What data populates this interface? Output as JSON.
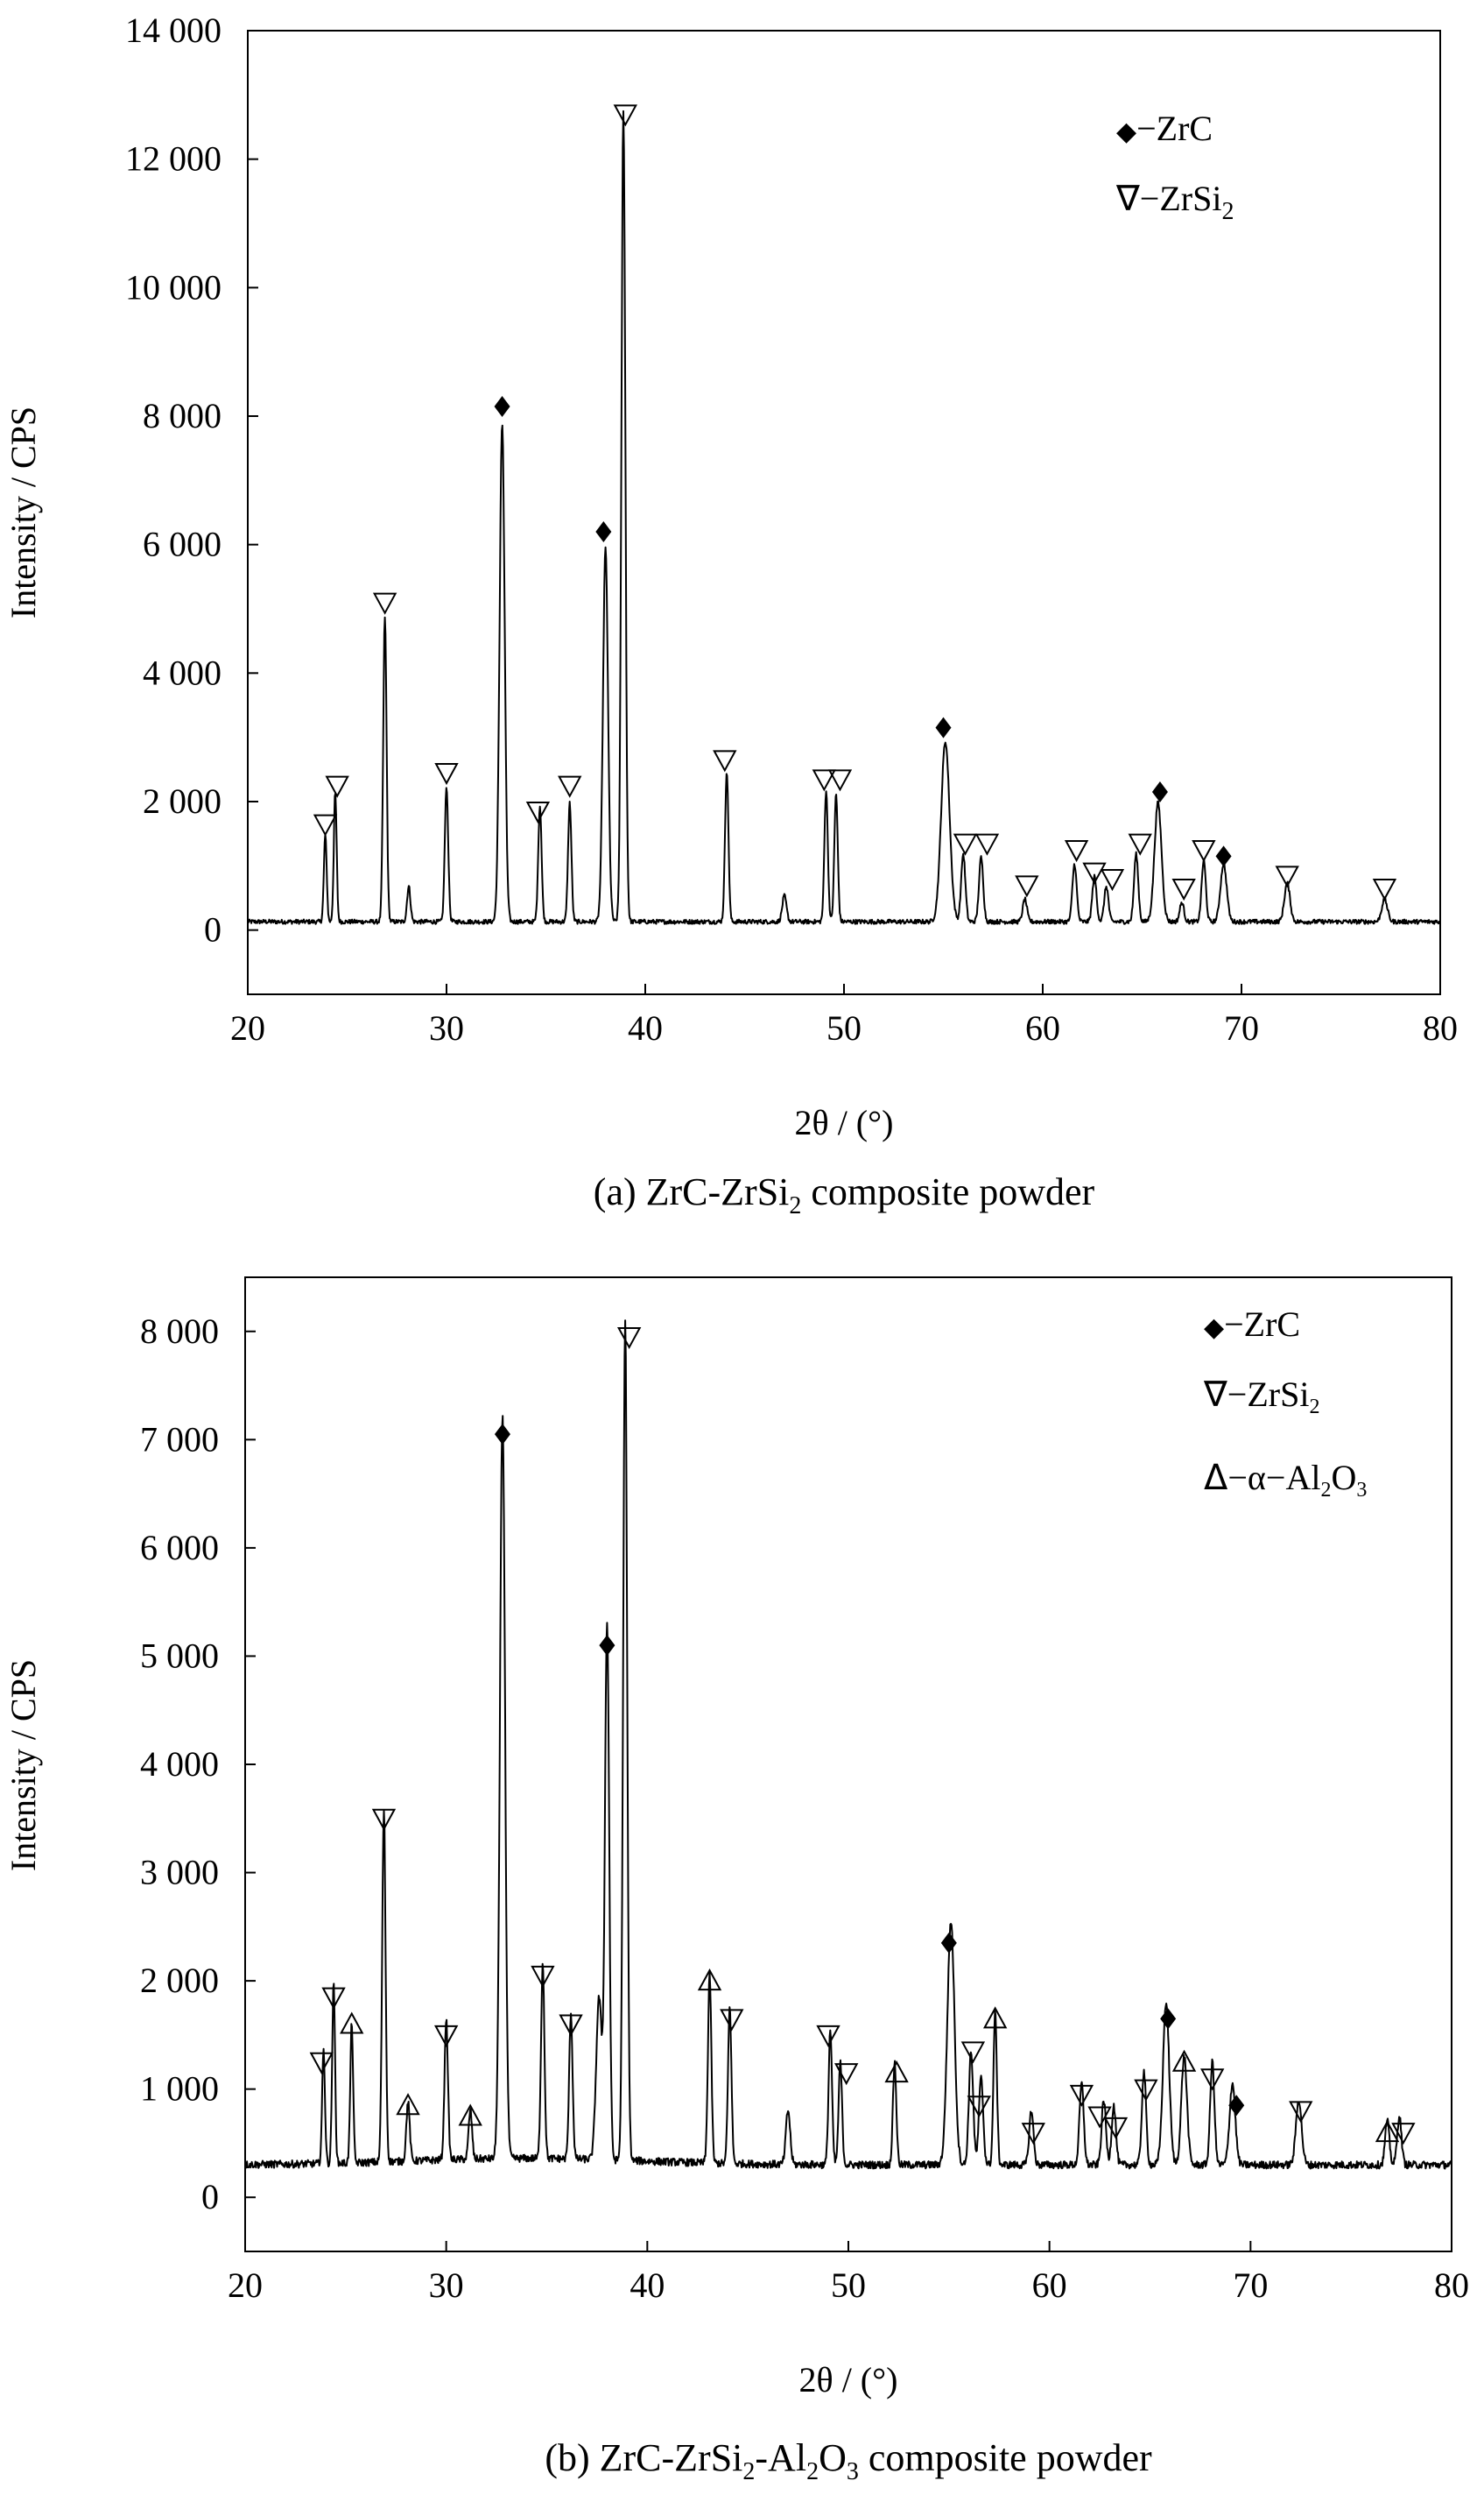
{
  "chart_data": [
    {
      "type": "line",
      "panel": "a",
      "caption": {
        "prefix": "(a) ZrC-ZrSi",
        "sub": "2",
        "suffix": " composite powder"
      },
      "xlabel": "2θ / (°)",
      "ylabel": "Intensity / CPS",
      "xlim": [
        20,
        80
      ],
      "ylim": [
        -1000,
        14000
      ],
      "x_ticks": [
        "20",
        "30",
        "40",
        "50",
        "60",
        "70",
        "80"
      ],
      "y_ticks": [
        "0",
        "2 000",
        "4 000",
        "6 000",
        "8 000",
        "10 000",
        "12 000",
        "14 000"
      ],
      "y_tick_values": [
        0,
        2000,
        4000,
        6000,
        8000,
        10000,
        12000,
        14000
      ],
      "baseline": 130,
      "peaks": [
        {
          "x": 23.9,
          "y": 1350,
          "w": 0.1
        },
        {
          "x": 24.4,
          "y": 2000,
          "w": 0.1
        },
        {
          "x": 26.9,
          "y": 4750,
          "w": 0.12
        },
        {
          "x": 28.1,
          "y": 550,
          "w": 0.12
        },
        {
          "x": 30.0,
          "y": 2100,
          "w": 0.12
        },
        {
          "x": 32.8,
          "y": 7750,
          "w": 0.18
        },
        {
          "x": 34.7,
          "y": 1800,
          "w": 0.12
        },
        {
          "x": 36.2,
          "y": 1850,
          "w": 0.12
        },
        {
          "x": 38.0,
          "y": 5800,
          "w": 0.18
        },
        {
          "x": 38.9,
          "y": 12600,
          "w": 0.14
        },
        {
          "x": 44.1,
          "y": 2350,
          "w": 0.12
        },
        {
          "x": 47.0,
          "y": 400,
          "w": 0.15
        },
        {
          "x": 49.1,
          "y": 2050,
          "w": 0.12
        },
        {
          "x": 49.6,
          "y": 2000,
          "w": 0.12
        },
        {
          "x": 55.1,
          "y": 2800,
          "w": 0.3
        },
        {
          "x": 56.0,
          "y": 1050,
          "w": 0.15
        },
        {
          "x": 56.9,
          "y": 1000,
          "w": 0.15
        },
        {
          "x": 59.1,
          "y": 350,
          "w": 0.15
        },
        {
          "x": 61.6,
          "y": 900,
          "w": 0.15
        },
        {
          "x": 62.6,
          "y": 700,
          "w": 0.15
        },
        {
          "x": 63.2,
          "y": 550,
          "w": 0.15
        },
        {
          "x": 64.7,
          "y": 1050,
          "w": 0.15
        },
        {
          "x": 65.8,
          "y": 1850,
          "w": 0.25
        },
        {
          "x": 67.0,
          "y": 300,
          "w": 0.15
        },
        {
          "x": 68.1,
          "y": 950,
          "w": 0.15
        },
        {
          "x": 69.1,
          "y": 900,
          "w": 0.22
        },
        {
          "x": 72.3,
          "y": 600,
          "w": 0.2
        },
        {
          "x": 77.2,
          "y": 350,
          "w": 0.2
        }
      ],
      "markers": [
        {
          "type": "ZrSi2",
          "x": 23.9,
          "y": 1650
        },
        {
          "type": "ZrSi2",
          "x": 24.5,
          "y": 2250
        },
        {
          "type": "ZrSi2",
          "x": 26.9,
          "y": 5100
        },
        {
          "type": "ZrSi2",
          "x": 30.0,
          "y": 2450
        },
        {
          "type": "ZrC",
          "x": 32.8,
          "y": 8150
        },
        {
          "type": "ZrSi2",
          "x": 34.6,
          "y": 1850
        },
        {
          "type": "ZrSi2",
          "x": 36.2,
          "y": 2250
        },
        {
          "type": "ZrC",
          "x": 37.9,
          "y": 6200
        },
        {
          "type": "ZrSi2",
          "x": 39.0,
          "y": 12700
        },
        {
          "type": "ZrSi2",
          "x": 44.0,
          "y": 2650
        },
        {
          "type": "ZrSi2",
          "x": 49.0,
          "y": 2350
        },
        {
          "type": "ZrSi2",
          "x": 49.8,
          "y": 2350
        },
        {
          "type": "ZrC",
          "x": 55.0,
          "y": 3150
        },
        {
          "type": "ZrSi2",
          "x": 56.1,
          "y": 1350
        },
        {
          "type": "ZrSi2",
          "x": 57.2,
          "y": 1350
        },
        {
          "type": "ZrSi2",
          "x": 59.2,
          "y": 700
        },
        {
          "type": "ZrSi2",
          "x": 61.7,
          "y": 1250
        },
        {
          "type": "ZrSi2",
          "x": 62.6,
          "y": 900
        },
        {
          "type": "ZrSi2",
          "x": 63.5,
          "y": 800
        },
        {
          "type": "ZrSi2",
          "x": 64.9,
          "y": 1350
        },
        {
          "type": "ZrC",
          "x": 65.9,
          "y": 2150
        },
        {
          "type": "ZrSi2",
          "x": 67.1,
          "y": 650
        },
        {
          "type": "ZrSi2",
          "x": 68.1,
          "y": 1250
        },
        {
          "type": "ZrC",
          "x": 69.1,
          "y": 1150
        },
        {
          "type": "ZrSi2",
          "x": 72.3,
          "y": 850
        },
        {
          "type": "ZrSi2",
          "x": 77.2,
          "y": 650
        }
      ],
      "legend": [
        {
          "symbol": "◆",
          "label": "−ZrC"
        },
        {
          "symbol": "∇",
          "label": "−ZrSi",
          "sub": "2"
        }
      ]
    },
    {
      "type": "line",
      "panel": "b",
      "caption": {
        "prefix": "(b) ZrC-ZrSi",
        "sub": "2",
        "mid": "-Al",
        "sub2": "2",
        "mid2": "O",
        "sub3": "3",
        "suffix": " composite powder"
      },
      "xlabel": "2θ / (°)",
      "ylabel": "Intensity / CPS",
      "xlim": [
        20,
        80
      ],
      "ylim": [
        -500,
        8500
      ],
      "x_ticks": [
        "20",
        "30",
        "40",
        "50",
        "60",
        "70",
        "80"
      ],
      "y_ticks": [
        "0",
        "1 000",
        "2 000",
        "3 000",
        "4 000",
        "5 000",
        "6 000",
        "7 000",
        "8 000"
      ],
      "y_tick_values": [
        0,
        1000,
        2000,
        3000,
        4000,
        5000,
        6000,
        7000,
        8000
      ],
      "baseline": 300,
      "peaks": [
        {
          "x": 23.9,
          "y": 1050,
          "w": 0.1
        },
        {
          "x": 24.4,
          "y": 1650,
          "w": 0.1
        },
        {
          "x": 25.3,
          "y": 1300,
          "w": 0.1
        },
        {
          "x": 26.9,
          "y": 3250,
          "w": 0.12
        },
        {
          "x": 28.1,
          "y": 550,
          "w": 0.12
        },
        {
          "x": 30.0,
          "y": 1300,
          "w": 0.12
        },
        {
          "x": 31.2,
          "y": 450,
          "w": 0.12
        },
        {
          "x": 32.8,
          "y": 6850,
          "w": 0.18
        },
        {
          "x": 34.8,
          "y": 1800,
          "w": 0.12
        },
        {
          "x": 36.2,
          "y": 1350,
          "w": 0.12
        },
        {
          "x": 37.6,
          "y": 1500,
          "w": 0.2
        },
        {
          "x": 38.0,
          "y": 4950,
          "w": 0.15
        },
        {
          "x": 38.9,
          "y": 7750,
          "w": 0.14
        },
        {
          "x": 43.1,
          "y": 1750,
          "w": 0.12
        },
        {
          "x": 44.1,
          "y": 1450,
          "w": 0.12
        },
        {
          "x": 47.0,
          "y": 500,
          "w": 0.15
        },
        {
          "x": 49.1,
          "y": 1250,
          "w": 0.12
        },
        {
          "x": 49.6,
          "y": 950,
          "w": 0.12
        },
        {
          "x": 52.3,
          "y": 950,
          "w": 0.12
        },
        {
          "x": 55.1,
          "y": 2250,
          "w": 0.25
        },
        {
          "x": 56.1,
          "y": 1050,
          "w": 0.15
        },
        {
          "x": 56.6,
          "y": 800,
          "w": 0.15
        },
        {
          "x": 57.3,
          "y": 1400,
          "w": 0.12
        },
        {
          "x": 59.1,
          "y": 500,
          "w": 0.15
        },
        {
          "x": 61.6,
          "y": 750,
          "w": 0.15
        },
        {
          "x": 62.7,
          "y": 600,
          "w": 0.15
        },
        {
          "x": 63.2,
          "y": 550,
          "w": 0.15
        },
        {
          "x": 64.7,
          "y": 850,
          "w": 0.15
        },
        {
          "x": 65.8,
          "y": 1500,
          "w": 0.22
        },
        {
          "x": 66.7,
          "y": 1000,
          "w": 0.2
        },
        {
          "x": 68.1,
          "y": 950,
          "w": 0.15
        },
        {
          "x": 69.1,
          "y": 750,
          "w": 0.2
        },
        {
          "x": 72.4,
          "y": 600,
          "w": 0.2
        },
        {
          "x": 76.8,
          "y": 400,
          "w": 0.15
        },
        {
          "x": 77.4,
          "y": 450,
          "w": 0.15
        }
      ],
      "markers": [
        {
          "type": "ZrSi2",
          "x": 23.8,
          "y": 1250
        },
        {
          "type": "ZrSi2",
          "x": 24.4,
          "y": 1850
        },
        {
          "type": "Al2O3",
          "x": 25.3,
          "y": 1600
        },
        {
          "type": "ZrSi2",
          "x": 26.9,
          "y": 3500
        },
        {
          "type": "Al2O3",
          "x": 28.1,
          "y": 850
        },
        {
          "type": "ZrSi2",
          "x": 30.0,
          "y": 1500
        },
        {
          "type": "Al2O3",
          "x": 31.2,
          "y": 750
        },
        {
          "type": "ZrC",
          "x": 32.8,
          "y": 7050
        },
        {
          "type": "ZrSi2",
          "x": 34.8,
          "y": 2050
        },
        {
          "type": "ZrSi2",
          "x": 36.2,
          "y": 1600
        },
        {
          "type": "ZrC",
          "x": 38.0,
          "y": 5100
        },
        {
          "type": "ZrSi2",
          "x": 39.1,
          "y": 7950
        },
        {
          "type": "Al2O3",
          "x": 43.1,
          "y": 2000
        },
        {
          "type": "ZrSi2",
          "x": 44.2,
          "y": 1650
        },
        {
          "type": "ZrSi2",
          "x": 49.0,
          "y": 1500
        },
        {
          "type": "ZrSi2",
          "x": 49.9,
          "y": 1150
        },
        {
          "type": "Al2O3",
          "x": 52.4,
          "y": 1150
        },
        {
          "type": "ZrC",
          "x": 55.0,
          "y": 2350
        },
        {
          "type": "ZrSi2",
          "x": 56.2,
          "y": 1350
        },
        {
          "type": "ZrSi2",
          "x": 56.5,
          "y": 850
        },
        {
          "type": "Al2O3",
          "x": 57.3,
          "y": 1650
        },
        {
          "type": "ZrSi2",
          "x": 59.2,
          "y": 600
        },
        {
          "type": "ZrSi2",
          "x": 61.6,
          "y": 950
        },
        {
          "type": "ZrSi2",
          "x": 62.5,
          "y": 750
        },
        {
          "type": "ZrSi2",
          "x": 63.3,
          "y": 650
        },
        {
          "type": "ZrSi2",
          "x": 64.8,
          "y": 1000
        },
        {
          "type": "ZrC",
          "x": 65.9,
          "y": 1650
        },
        {
          "type": "Al2O3",
          "x": 66.7,
          "y": 1250
        },
        {
          "type": "ZrSi2",
          "x": 68.1,
          "y": 1100
        },
        {
          "type": "ZrC",
          "x": 69.3,
          "y": 850
        },
        {
          "type": "ZrSi2",
          "x": 72.5,
          "y": 800
        },
        {
          "type": "Al2O3",
          "x": 76.8,
          "y": 600
        },
        {
          "type": "ZrSi2",
          "x": 77.6,
          "y": 600
        }
      ],
      "legend": [
        {
          "symbol": "◆",
          "label": "−ZrC"
        },
        {
          "symbol": "∇",
          "label": "−ZrSi",
          "sub": "2"
        },
        {
          "symbol": "Δ",
          "label": "−α−Al",
          "sub": "2",
          "mid": "O",
          "sub2": "3"
        }
      ]
    }
  ]
}
